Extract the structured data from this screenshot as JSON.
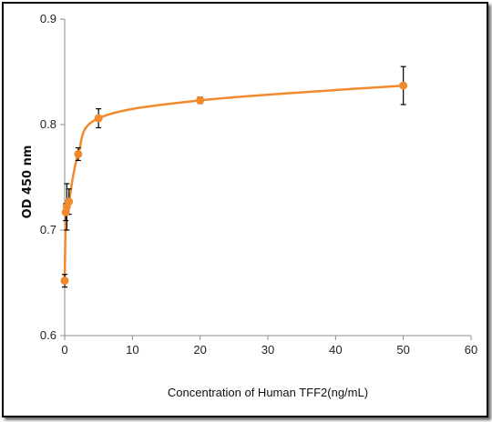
{
  "chart_data": {
    "type": "scatter",
    "title": "",
    "xlabel": "Concentration of Human TFF2(ng/mL)",
    "ylabel": "OD 450 nm",
    "xlim": [
      0,
      60
    ],
    "ylim": [
      0.6,
      0.9
    ],
    "x_ticks": [
      "0",
      "10",
      "20",
      "30",
      "40",
      "50",
      "60"
    ],
    "y_ticks": [
      "0.6",
      "0.7",
      "0.8",
      "0.9"
    ],
    "grid": false,
    "legend": "none",
    "color": "#f08a2c",
    "series": [
      {
        "x": [
          0,
          0.16,
          0.31,
          0.625,
          2,
          5,
          20,
          50
        ],
        "y": [
          0.652,
          0.717,
          0.722,
          0.727,
          0.772,
          0.806,
          0.823,
          0.837
        ],
        "err": [
          0.006,
          0.008,
          0.022,
          0.012,
          0.006,
          0.009,
          0.003,
          0.018
        ]
      }
    ]
  }
}
